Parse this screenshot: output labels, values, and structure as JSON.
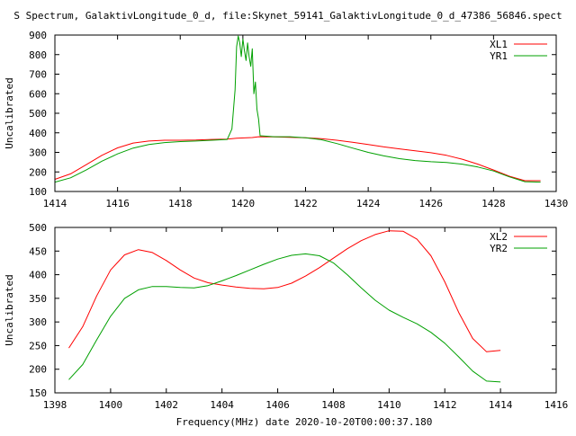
{
  "title": "S Spectrum, GalaktivLongitude_0_d, file:Skynet_59141_GalaktivLongitude_0_d_47386_56846.spect",
  "xlabel": "Frequency(MHz) date 2020-10-20T00:00:37.180",
  "chart_data": [
    {
      "type": "line",
      "ylabel": "Uncalibrated",
      "xlim": [
        1414,
        1430
      ],
      "ylim": [
        100,
        900
      ],
      "xticks": [
        1414,
        1416,
        1418,
        1420,
        1422,
        1424,
        1426,
        1428,
        1430
      ],
      "yticks": [
        100,
        200,
        300,
        400,
        500,
        600,
        700,
        800,
        900
      ],
      "legend": "top-right",
      "series": [
        {
          "name": "XL1",
          "color": "#ff0000",
          "x": [
            1414.0,
            1414.5,
            1415.0,
            1415.5,
            1416.0,
            1416.5,
            1417.0,
            1417.5,
            1418.0,
            1418.5,
            1419.0,
            1419.5,
            1419.8,
            1420.3,
            1420.5,
            1421.0,
            1421.5,
            1422.0,
            1422.5,
            1423.0,
            1423.5,
            1424.0,
            1424.5,
            1425.0,
            1425.5,
            1426.0,
            1426.5,
            1427.0,
            1427.5,
            1428.0,
            1428.5,
            1429.0,
            1429.5
          ],
          "y": [
            162,
            190,
            237,
            285,
            323,
            348,
            358,
            362,
            362,
            363,
            366,
            368,
            372,
            376,
            380,
            379,
            377,
            375,
            370,
            362,
            352,
            340,
            328,
            318,
            308,
            298,
            285,
            265,
            240,
            210,
            178,
            155,
            155
          ]
        },
        {
          "name": "YR1",
          "color": "#00a000",
          "x": [
            1414.0,
            1414.5,
            1415.0,
            1415.5,
            1416.0,
            1416.5,
            1417.0,
            1417.5,
            1418.0,
            1418.5,
            1419.0,
            1419.5,
            1419.65,
            1419.75,
            1419.8,
            1419.85,
            1419.9,
            1419.95,
            1420.0,
            1420.05,
            1420.1,
            1420.15,
            1420.2,
            1420.25,
            1420.3,
            1420.35,
            1420.4,
            1420.45,
            1420.5,
            1420.55,
            1421.0,
            1421.5,
            1422.0,
            1422.5,
            1423.0,
            1423.5,
            1424.0,
            1424.5,
            1425.0,
            1425.5,
            1426.0,
            1426.5,
            1427.0,
            1427.5,
            1428.0,
            1428.5,
            1429.0,
            1429.5
          ],
          "y": [
            148,
            170,
            210,
            255,
            292,
            322,
            340,
            350,
            355,
            358,
            362,
            366,
            420,
            620,
            840,
            895,
            860,
            790,
            880,
            820,
            770,
            860,
            790,
            740,
            830,
            600,
            660,
            520,
            470,
            385,
            380,
            380,
            375,
            365,
            345,
            322,
            300,
            282,
            268,
            258,
            252,
            248,
            240,
            225,
            205,
            175,
            150,
            148
          ]
        }
      ]
    },
    {
      "type": "line",
      "ylabel": "Uncalibrated",
      "xlim": [
        1398,
        1416
      ],
      "ylim": [
        150,
        500
      ],
      "xticks": [
        1398,
        1400,
        1402,
        1404,
        1406,
        1408,
        1410,
        1412,
        1414,
        1416
      ],
      "yticks": [
        150,
        200,
        250,
        300,
        350,
        400,
        450,
        500
      ],
      "legend": "top-right",
      "series": [
        {
          "name": "XL2",
          "color": "#ff0000",
          "x": [
            1398.5,
            1399.0,
            1399.5,
            1400.0,
            1400.5,
            1401.0,
            1401.5,
            1402.0,
            1402.5,
            1403.0,
            1403.5,
            1404.0,
            1404.5,
            1405.0,
            1405.5,
            1406.0,
            1406.5,
            1407.0,
            1407.5,
            1408.0,
            1408.5,
            1409.0,
            1409.5,
            1410.0,
            1410.5,
            1411.0,
            1411.5,
            1412.0,
            1412.5,
            1413.0,
            1413.5,
            1414.0
          ],
          "y": [
            245,
            290,
            355,
            410,
            442,
            453,
            447,
            430,
            410,
            393,
            383,
            378,
            374,
            371,
            370,
            373,
            382,
            397,
            415,
            435,
            455,
            472,
            485,
            493,
            492,
            475,
            440,
            385,
            320,
            265,
            237,
            240
          ]
        },
        {
          "name": "YR2",
          "color": "#00a000",
          "x": [
            1398.5,
            1399.0,
            1399.5,
            1400.0,
            1400.5,
            1401.0,
            1401.5,
            1402.0,
            1402.5,
            1403.0,
            1403.5,
            1404.0,
            1404.5,
            1405.0,
            1405.5,
            1406.0,
            1406.5,
            1407.0,
            1407.5,
            1408.0,
            1408.5,
            1409.0,
            1409.5,
            1410.0,
            1410.5,
            1411.0,
            1411.5,
            1412.0,
            1412.5,
            1413.0,
            1413.5,
            1414.0
          ],
          "y": [
            178,
            210,
            262,
            312,
            350,
            368,
            375,
            375,
            373,
            372,
            377,
            387,
            398,
            410,
            422,
            433,
            441,
            444,
            440,
            425,
            400,
            372,
            346,
            325,
            310,
            296,
            278,
            255,
            226,
            196,
            175,
            173
          ]
        }
      ]
    }
  ]
}
